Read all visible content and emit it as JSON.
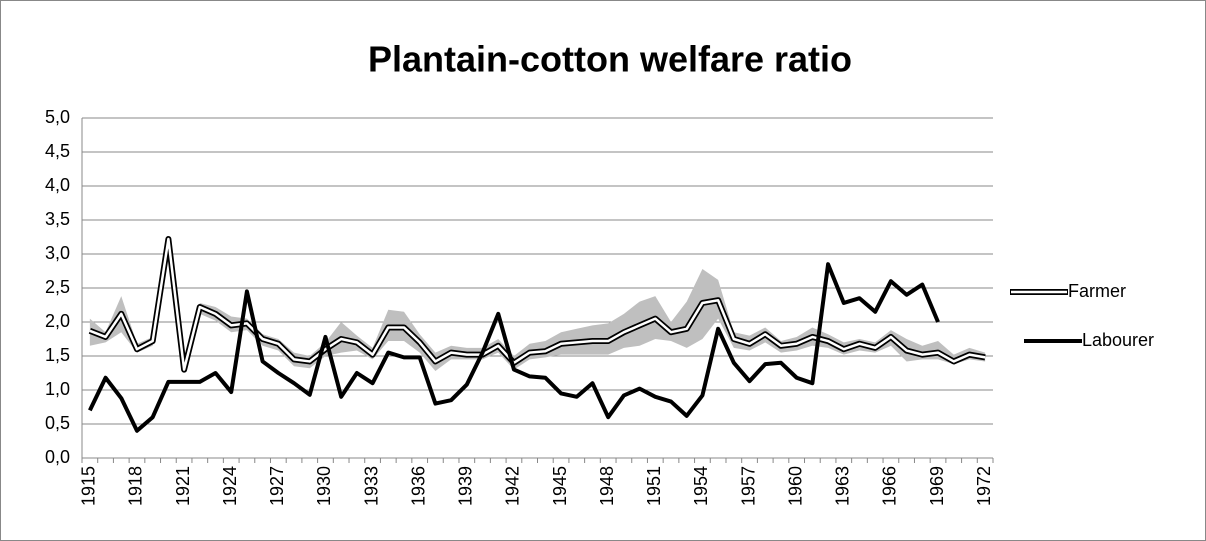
{
  "chart_data": {
    "type": "line",
    "title": "Plantain-cotton welfare ratio",
    "categories": [
      "1915",
      null,
      null,
      "1918",
      null,
      null,
      "1921",
      null,
      null,
      "1924",
      null,
      null,
      "1927",
      null,
      null,
      "1930",
      null,
      null,
      "1933",
      null,
      null,
      "1936",
      null,
      null,
      "1939",
      null,
      null,
      "1942",
      null,
      null,
      "1945",
      null,
      null,
      "1948",
      null,
      null,
      "1951",
      null,
      null,
      "1954",
      null,
      null,
      "1957",
      null,
      null,
      "1960",
      null,
      null,
      "1963",
      null,
      null,
      "1966",
      null,
      null,
      "1969",
      null,
      null,
      "1972"
    ],
    "series": [
      {
        "name": "Farmer",
        "color": "#000000",
        "line_style": "double",
        "values": [
          1.87,
          1.78,
          2.12,
          1.6,
          1.72,
          3.22,
          1.3,
          2.22,
          2.12,
          1.95,
          1.98,
          1.75,
          1.68,
          1.45,
          1.42,
          1.6,
          1.75,
          1.7,
          1.52,
          1.92,
          1.92,
          1.7,
          1.42,
          1.55,
          1.52,
          1.52,
          1.65,
          1.4,
          1.55,
          1.57,
          1.68,
          1.7,
          1.72,
          1.72,
          1.85,
          1.95,
          2.05,
          1.85,
          1.9,
          2.28,
          2.32,
          1.75,
          1.68,
          1.82,
          1.65,
          1.68,
          1.78,
          1.72,
          1.6,
          1.68,
          1.62,
          1.78,
          1.58,
          1.52,
          1.55,
          1.42,
          1.52,
          1.48
        ],
        "band_color": "#bfbfbf",
        "band_upper": [
          2.05,
          1.85,
          2.38,
          1.68,
          1.78,
          3.25,
          1.35,
          2.28,
          2.22,
          2.08,
          2.05,
          1.82,
          1.75,
          1.55,
          1.5,
          1.7,
          2.0,
          1.8,
          1.62,
          2.18,
          2.15,
          1.82,
          1.55,
          1.65,
          1.62,
          1.62,
          1.75,
          1.5,
          1.68,
          1.72,
          1.85,
          1.9,
          1.95,
          1.98,
          2.12,
          2.3,
          2.38,
          2.0,
          2.3,
          2.78,
          2.62,
          1.85,
          1.8,
          1.92,
          1.72,
          1.78,
          1.92,
          1.82,
          1.7,
          1.75,
          1.7,
          1.88,
          1.75,
          1.65,
          1.72,
          1.52,
          1.62,
          1.55
        ],
        "band_lower": [
          1.65,
          1.7,
          1.85,
          1.55,
          1.65,
          3.15,
          1.25,
          2.12,
          2.02,
          1.85,
          1.88,
          1.65,
          1.58,
          1.35,
          1.32,
          1.5,
          1.55,
          1.58,
          1.45,
          1.72,
          1.72,
          1.55,
          1.28,
          1.45,
          1.45,
          1.45,
          1.55,
          1.3,
          1.45,
          1.48,
          1.52,
          1.52,
          1.52,
          1.52,
          1.62,
          1.65,
          1.75,
          1.72,
          1.62,
          1.75,
          2.05,
          1.62,
          1.58,
          1.7,
          1.55,
          1.58,
          1.65,
          1.62,
          1.52,
          1.58,
          1.55,
          1.65,
          1.42,
          1.45,
          1.45,
          1.38,
          1.45,
          1.42
        ]
      },
      {
        "name": "Labourer",
        "color": "#000000",
        "line_style": "solid",
        "values": [
          0.7,
          1.18,
          0.88,
          0.4,
          0.6,
          1.12,
          1.12,
          1.12,
          1.25,
          0.97,
          2.45,
          1.42,
          1.25,
          1.1,
          0.93,
          1.78,
          0.9,
          1.25,
          1.1,
          1.55,
          1.48,
          1.48,
          0.8,
          0.85,
          1.08,
          1.55,
          2.12,
          1.3,
          1.2,
          1.18,
          0.95,
          0.9,
          1.1,
          0.6,
          0.92,
          1.02,
          0.9,
          0.83,
          0.62,
          0.92,
          1.9,
          1.4,
          1.13,
          1.38,
          1.4,
          1.18,
          1.1,
          2.85,
          2.28,
          2.35,
          2.15,
          2.6,
          2.4,
          2.55,
          2.0,
          null,
          null,
          null
        ]
      }
    ],
    "ylim": [
      0,
      5
    ],
    "yticks": [
      {
        "value": 0,
        "label": "0,0"
      },
      {
        "value": 0.5,
        "label": "0,5"
      },
      {
        "value": 1,
        "label": "1,0"
      },
      {
        "value": 1.5,
        "label": "1,5"
      },
      {
        "value": 2,
        "label": "2,0"
      },
      {
        "value": 2.5,
        "label": "2,5"
      },
      {
        "value": 3,
        "label": "3,0"
      },
      {
        "value": 3.5,
        "label": "3,5"
      },
      {
        "value": 4,
        "label": "4,0"
      },
      {
        "value": 4.5,
        "label": "4,5"
      },
      {
        "value": 5,
        "label": "5,0"
      }
    ],
    "grid": true,
    "legend": "right"
  }
}
